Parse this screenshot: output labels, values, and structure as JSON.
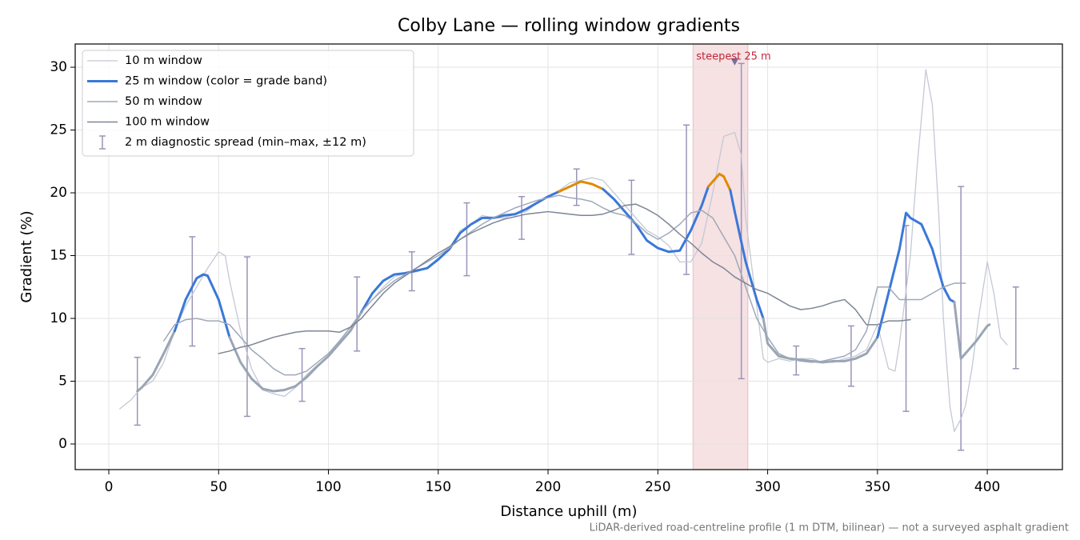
{
  "chart_data": {
    "type": "line",
    "title": "Colby Lane — rolling window gradients",
    "xlabel": "Distance uphill (m)",
    "ylabel": "Gradient (%)",
    "footnote": "LiDAR-derived road-centreline profile (1 m DTM, bilinear) — not a surveyed asphalt gradient",
    "xlim": [
      -15.3,
      434.2
    ],
    "ylim": [
      -2.04,
      31.85
    ],
    "xticks": [
      0,
      50,
      100,
      150,
      200,
      250,
      300,
      350,
      400
    ],
    "yticks": [
      0,
      5,
      10,
      15,
      20,
      25,
      30
    ],
    "grid": true,
    "legend": "upper left",
    "band_thresholds": [
      10,
      20
    ],
    "band_colors": [
      "#9aa5b5",
      "#3a78d8",
      "#e08a00"
    ],
    "series": [
      {
        "name": "10 m window",
        "color": "#c3c9d4",
        "width": 1.3,
        "x": [
          5,
          10,
          15,
          20,
          25,
          30,
          35,
          40,
          45,
          50,
          53,
          55,
          60,
          65,
          70,
          75,
          80,
          85,
          90,
          95,
          100,
          105,
          110,
          115,
          120,
          125,
          130,
          135,
          140,
          145,
          150,
          155,
          160,
          165,
          170,
          175,
          180,
          185,
          190,
          195,
          200,
          205,
          210,
          215,
          220,
          225,
          230,
          235,
          240,
          245,
          250,
          255,
          260,
          265,
          270,
          275,
          280,
          285,
          288,
          290,
          295,
          298,
          300,
          305,
          310,
          315,
          320,
          325,
          330,
          335,
          340,
          345,
          350,
          355,
          358,
          360,
          365,
          368,
          372,
          375,
          378,
          380,
          383,
          385,
          388,
          390,
          393,
          396,
          400,
          403,
          406,
          409
        ],
        "values": [
          2.8,
          3.5,
          4.5,
          5.0,
          6.5,
          9,
          11,
          12.5,
          14,
          15.3,
          15,
          13,
          9,
          6,
          4.3,
          4,
          3.8,
          4.5,
          5.5,
          6.3,
          7,
          8,
          9,
          10.5,
          11.5,
          12.5,
          13.3,
          13.6,
          13.7,
          14,
          14.6,
          15.5,
          17,
          17.5,
          18.2,
          18,
          18,
          18.3,
          18.5,
          19.2,
          19.7,
          20.2,
          20.8,
          21,
          21.2,
          21,
          20,
          19,
          18,
          17,
          16.5,
          15.8,
          14.5,
          14.5,
          16,
          20,
          24.5,
          24.8,
          23,
          18,
          11,
          6.8,
          6.5,
          6.8,
          6.6,
          6.8,
          6.8,
          6.5,
          6.5,
          6.8,
          7,
          7.5,
          9.5,
          6,
          5.8,
          8,
          15,
          22,
          29.8,
          27,
          18,
          10,
          3,
          1,
          2,
          3,
          6,
          10,
          14.5,
          12,
          8.5,
          7.9
        ]
      },
      {
        "name": "25 m window (color = grade band)",
        "color": "#3a78d8",
        "width": 3,
        "banded": true,
        "x": [
          13,
          15,
          20,
          25,
          30,
          35,
          40,
          43,
          45,
          50,
          55,
          60,
          65,
          70,
          75,
          80,
          85,
          90,
          95,
          100,
          105,
          110,
          115,
          120,
          125,
          130,
          135,
          140,
          145,
          150,
          155,
          160,
          165,
          170,
          175,
          180,
          185,
          190,
          195,
          200,
          205,
          210,
          215,
          220,
          225,
          230,
          235,
          240,
          245,
          250,
          255,
          260,
          265,
          270,
          273,
          278,
          280,
          283,
          285,
          290,
          295,
          298,
          300,
          305,
          310,
          315,
          320,
          325,
          330,
          335,
          340,
          345,
          350,
          355,
          360,
          363,
          365,
          370,
          375,
          380,
          383,
          385,
          388,
          390,
          395,
          400,
          401
        ],
        "values": [
          4.2,
          4.5,
          5.5,
          7.2,
          9,
          11.5,
          13.2,
          13.5,
          13.4,
          11.5,
          8.5,
          6.5,
          5.2,
          4.4,
          4.2,
          4.3,
          4.6,
          5.3,
          6.2,
          7,
          8,
          9,
          10.5,
          12,
          13,
          13.5,
          13.6,
          13.8,
          14,
          14.7,
          15.5,
          16.8,
          17.5,
          18,
          18,
          18.2,
          18.3,
          18.7,
          19.2,
          19.7,
          20.1,
          20.5,
          20.9,
          20.7,
          20.3,
          19.5,
          18.5,
          17.5,
          16.2,
          15.6,
          15.3,
          15.4,
          17,
          19,
          20.5,
          21.5,
          21.3,
          20.2,
          18.5,
          14.5,
          11.5,
          10,
          8,
          7,
          6.8,
          6.7,
          6.6,
          6.5,
          6.6,
          6.6,
          6.8,
          7.2,
          8.5,
          12,
          15.5,
          18.4,
          18,
          17.5,
          15.5,
          12.5,
          11.5,
          11.3,
          6.8,
          7.2,
          8.2,
          9.4,
          9.5
        ]
      },
      {
        "name": "50 m window",
        "color": "#a0a9b8",
        "width": 1.5,
        "x": [
          25,
          30,
          35,
          40,
          45,
          50,
          55,
          60,
          65,
          70,
          75,
          80,
          85,
          90,
          95,
          100,
          105,
          110,
          115,
          120,
          125,
          130,
          135,
          140,
          145,
          150,
          155,
          160,
          165,
          170,
          175,
          180,
          185,
          190,
          195,
          200,
          205,
          210,
          215,
          220,
          225,
          230,
          235,
          240,
          245,
          250,
          255,
          260,
          265,
          270,
          275,
          280,
          285,
          290,
          295,
          300,
          305,
          310,
          315,
          320,
          325,
          330,
          335,
          340,
          345,
          350,
          355,
          360,
          365,
          370,
          375,
          380,
          385,
          390
        ],
        "values": [
          8.2,
          9.5,
          9.9,
          10,
          9.8,
          9.8,
          9.5,
          8.5,
          7.5,
          6.8,
          6,
          5.5,
          5.5,
          5.8,
          6.5,
          7.2,
          8.2,
          9.3,
          10.5,
          11.5,
          12.3,
          13,
          13.5,
          14,
          14.5,
          15,
          15.6,
          16.3,
          16.9,
          17.5,
          18,
          18.4,
          18.8,
          19.1,
          19.4,
          19.6,
          19.8,
          19.6,
          19.5,
          19.3,
          18.8,
          18.4,
          18.2,
          17.6,
          16.8,
          16.3,
          16.8,
          17.5,
          18.4,
          18.6,
          18,
          16.5,
          15,
          12.5,
          10,
          8.5,
          7.2,
          6.8,
          6.6,
          6.5,
          6.6,
          6.8,
          7,
          7.5,
          9,
          12.5,
          12.5,
          11.5,
          11.5,
          11.5,
          12,
          12.5,
          12.8,
          12.8
        ]
      },
      {
        "name": "100 m window",
        "color": "#7d8595",
        "width": 1.5,
        "x": [
          50,
          55,
          60,
          65,
          70,
          75,
          80,
          85,
          90,
          95,
          100,
          105,
          110,
          115,
          120,
          125,
          130,
          135,
          140,
          145,
          150,
          155,
          160,
          165,
          170,
          175,
          180,
          185,
          190,
          195,
          200,
          205,
          210,
          215,
          220,
          225,
          230,
          235,
          240,
          245,
          250,
          255,
          260,
          265,
          270,
          275,
          280,
          285,
          290,
          295,
          300,
          305,
          310,
          315,
          320,
          325,
          330,
          335,
          340,
          345,
          350,
          355,
          360,
          365
        ],
        "values": [
          7.2,
          7.4,
          7.7,
          7.9,
          8.2,
          8.5,
          8.7,
          8.9,
          9,
          9,
          9,
          8.9,
          9.3,
          10,
          11,
          12,
          12.8,
          13.4,
          14,
          14.6,
          15.2,
          15.7,
          16.3,
          16.8,
          17.2,
          17.6,
          17.9,
          18.1,
          18.3,
          18.4,
          18.5,
          18.4,
          18.3,
          18.2,
          18.2,
          18.3,
          18.6,
          19,
          19.1,
          18.7,
          18.2,
          17.5,
          16.7,
          16,
          15.2,
          14.5,
          14,
          13.3,
          12.8,
          12.3,
          12,
          11.5,
          11,
          10.7,
          10.8,
          11,
          11.3,
          11.5,
          10.7,
          9.5,
          9.5,
          9.8,
          9.8,
          9.9
        ]
      }
    ],
    "errorbars": {
      "name": "2 m diagnostic spread (min–max, ±12 m)",
      "color": "#9a94b8",
      "x": [
        13,
        38,
        63,
        88,
        113,
        138,
        163,
        188,
        213,
        238,
        263,
        288,
        313,
        338,
        363,
        388,
        413
      ],
      "low": [
        1.5,
        7.8,
        2.2,
        3.4,
        7.4,
        12.2,
        13.4,
        16.3,
        19.0,
        15.1,
        13.5,
        5.2,
        5.5,
        4.6,
        2.6,
        -0.5,
        6.0
      ],
      "high": [
        6.9,
        16.5,
        14.9,
        7.6,
        13.3,
        15.3,
        19.2,
        19.7,
        21.9,
        21.0,
        25.4,
        30.3,
        7.8,
        9.4,
        17.4,
        20.5,
        12.5
      ]
    },
    "annotation": {
      "text": "steepest 25 m",
      "span": [
        266,
        291
      ],
      "marker_x": 285,
      "marker_y": 30.4,
      "color": "#c0283a"
    }
  }
}
